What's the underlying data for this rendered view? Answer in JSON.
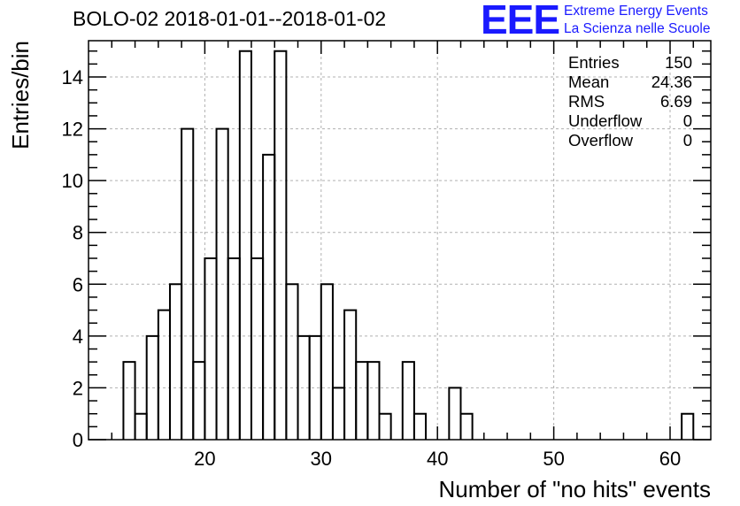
{
  "title": "BOLO-02 2018-01-01--2018-01-02",
  "logo": {
    "letters": "EEE",
    "line1": "Extreme Energy Events",
    "line2": "La Scienza nelle Scuole",
    "color": "#1a1aff"
  },
  "stats": [
    {
      "label": "Entries",
      "value": "150"
    },
    {
      "label": "Mean",
      "value": "24.36"
    },
    {
      "label": "RMS",
      "value": "6.69"
    },
    {
      "label": "Underflow",
      "value": "0"
    },
    {
      "label": "Overflow",
      "value": "0"
    }
  ],
  "chart_data": {
    "type": "histogram",
    "title": "BOLO-02 2018-01-01--2018-01-02",
    "xlabel": "Number of \"no hits\" events",
    "ylabel": "Entries/bin",
    "xlim": [
      10,
      63.5
    ],
    "ylim": [
      0,
      15.4
    ],
    "bin_width": 1,
    "grid": true,
    "x_ticks": [
      20,
      30,
      40,
      50,
      60
    ],
    "y_ticks": [
      0,
      2,
      4,
      6,
      8,
      10,
      12,
      14
    ],
    "bins": [
      {
        "x": 13,
        "count": 3
      },
      {
        "x": 14,
        "count": 1
      },
      {
        "x": 15,
        "count": 4
      },
      {
        "x": 16,
        "count": 5
      },
      {
        "x": 17,
        "count": 6
      },
      {
        "x": 18,
        "count": 12
      },
      {
        "x": 19,
        "count": 3
      },
      {
        "x": 20,
        "count": 7
      },
      {
        "x": 21,
        "count": 12
      },
      {
        "x": 22,
        "count": 7
      },
      {
        "x": 23,
        "count": 15
      },
      {
        "x": 24,
        "count": 7
      },
      {
        "x": 25,
        "count": 11
      },
      {
        "x": 26,
        "count": 15
      },
      {
        "x": 27,
        "count": 6
      },
      {
        "x": 28,
        "count": 4
      },
      {
        "x": 29,
        "count": 4
      },
      {
        "x": 30,
        "count": 6
      },
      {
        "x": 31,
        "count": 2
      },
      {
        "x": 32,
        "count": 5
      },
      {
        "x": 33,
        "count": 3
      },
      {
        "x": 34,
        "count": 3
      },
      {
        "x": 35,
        "count": 1
      },
      {
        "x": 37,
        "count": 3
      },
      {
        "x": 38,
        "count": 1
      },
      {
        "x": 41,
        "count": 2
      },
      {
        "x": 42,
        "count": 1
      },
      {
        "x": 61,
        "count": 1
      }
    ]
  }
}
